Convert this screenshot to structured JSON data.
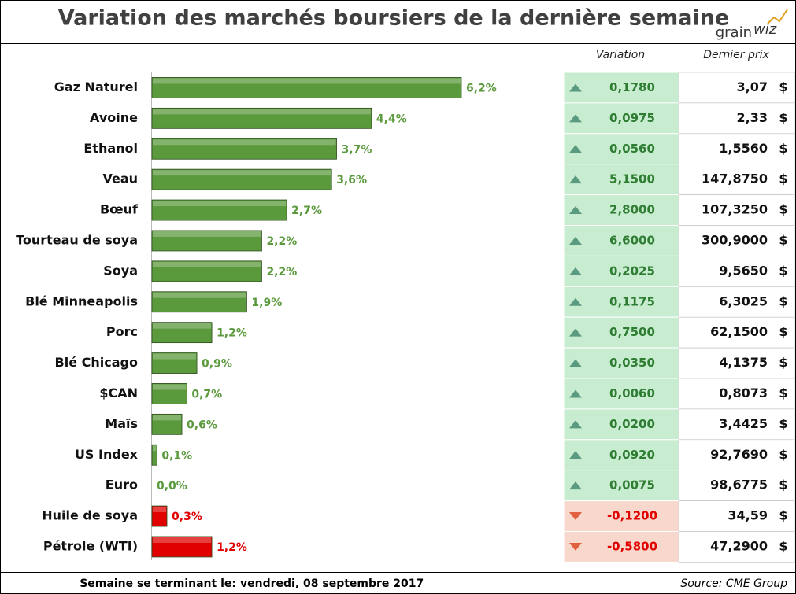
{
  "header": {
    "title": "Variation des marchés boursiers de la dernière semaine",
    "logo_left": "grain",
    "logo_right": "wiz"
  },
  "chart_data": {
    "type": "bar",
    "orientation": "horizontal",
    "categories": [
      "Gaz Naturel",
      "Avoine",
      "Ethanol",
      "Veau",
      "Bœuf",
      "Tourteau de soya",
      "Soya",
      "Blé Minneapolis",
      "Porc",
      "Blé Chicago",
      "$CAN",
      "Maïs",
      "US Index",
      "Euro",
      "Huile de soya",
      "Pétrole (WTI)"
    ],
    "values": [
      6.2,
      4.4,
      3.7,
      3.6,
      2.7,
      2.2,
      2.2,
      1.9,
      1.2,
      0.9,
      0.7,
      0.6,
      0.1,
      0.0,
      0.3,
      1.2
    ],
    "value_labels": [
      "6,2%",
      "4,4%",
      "3,7%",
      "3,6%",
      "2,7%",
      "2,2%",
      "2,2%",
      "1,9%",
      "1,2%",
      "0,9%",
      "0,7%",
      "0,6%",
      "0,1%",
      "0,0%",
      "0,3%",
      "1,2%"
    ],
    "colors": [
      "#5b9a3c",
      "#5b9a3c",
      "#5b9a3c",
      "#5b9a3c",
      "#5b9a3c",
      "#5b9a3c",
      "#5b9a3c",
      "#5b9a3c",
      "#5b9a3c",
      "#5b9a3c",
      "#5b9a3c",
      "#5b9a3c",
      "#5b9a3c",
      "#5b9a3c",
      "#e00000",
      "#e00000"
    ]
  },
  "table": {
    "columns": [
      "Variation",
      "Dernier prix"
    ],
    "currency": "$",
    "rows": [
      {
        "trend": "up",
        "variation": "0,1780",
        "price": "3,07"
      },
      {
        "trend": "up",
        "variation": "0,0975",
        "price": "2,33"
      },
      {
        "trend": "up",
        "variation": "0,0560",
        "price": "1,5560"
      },
      {
        "trend": "up",
        "variation": "5,1500",
        "price": "147,8750"
      },
      {
        "trend": "up",
        "variation": "2,8000",
        "price": "107,3250"
      },
      {
        "trend": "up",
        "variation": "6,6000",
        "price": "300,9000"
      },
      {
        "trend": "up",
        "variation": "0,2025",
        "price": "9,5650"
      },
      {
        "trend": "up",
        "variation": "0,1175",
        "price": "6,3025"
      },
      {
        "trend": "up",
        "variation": "0,7500",
        "price": "62,1500"
      },
      {
        "trend": "up",
        "variation": "0,0350",
        "price": "4,1375"
      },
      {
        "trend": "up",
        "variation": "0,0060",
        "price": "0,8073"
      },
      {
        "trend": "up",
        "variation": "0,0200",
        "price": "3,4425"
      },
      {
        "trend": "up",
        "variation": "0,0920",
        "price": "92,7690"
      },
      {
        "trend": "up",
        "variation": "0,0075",
        "price": "98,6775"
      },
      {
        "trend": "down",
        "variation": "-0,1200",
        "price": "34,59"
      },
      {
        "trend": "down",
        "variation": "-0,5800",
        "price": "47,2900"
      }
    ]
  },
  "footer": {
    "week_label": "Semaine se terminant le:",
    "date": "vendredi, 08 septembre 2017",
    "source": "Source: CME Group"
  }
}
